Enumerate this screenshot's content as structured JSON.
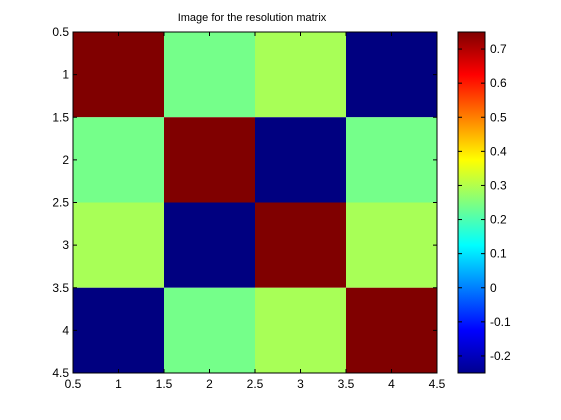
{
  "chart_data": {
    "type": "heatmap",
    "title": "Image for the resolution matrix",
    "xlabel": "",
    "ylabel": "",
    "rows": [
      1,
      2,
      3,
      4
    ],
    "cols": [
      1,
      2,
      3,
      4
    ],
    "values": [
      [
        0.75,
        0.24,
        0.29,
        -0.25
      ],
      [
        0.24,
        0.75,
        -0.25,
        0.24
      ],
      [
        0.29,
        -0.25,
        0.75,
        0.29
      ],
      [
        -0.25,
        0.24,
        0.29,
        0.75
      ]
    ],
    "xlim": [
      0.5,
      4.5
    ],
    "ylim": [
      0.5,
      4.5
    ],
    "y_axis_reversed": true,
    "x_ticks": [
      "0.5",
      "1",
      "1.5",
      "2",
      "2.5",
      "3",
      "3.5",
      "4",
      "4.5"
    ],
    "y_ticks": [
      "0.5",
      "1",
      "1.5",
      "2",
      "2.5",
      "3",
      "3.5",
      "4",
      "4.5"
    ],
    "colormap": "jet",
    "colorbar": {
      "range": [
        -0.25,
        0.75
      ],
      "ticks": [
        "-0.2",
        "-0.1",
        "0",
        "0.1",
        "0.2",
        "0.3",
        "0.4",
        "0.5",
        "0.6",
        "0.7"
      ]
    },
    "grid": false
  }
}
